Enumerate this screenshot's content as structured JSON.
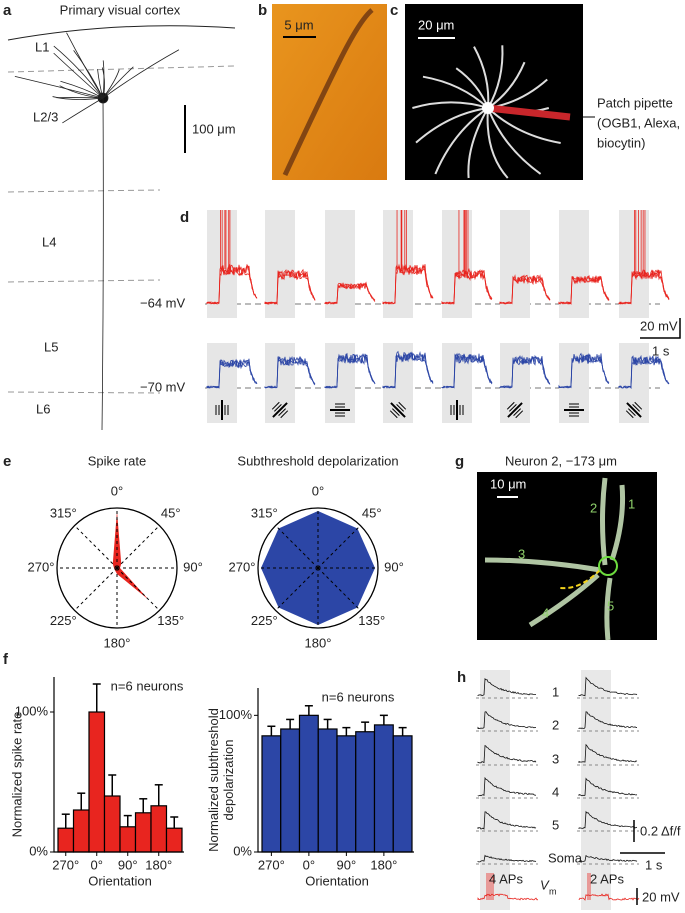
{
  "panels": {
    "a": {
      "label": "a",
      "title": "Primary visual cortex",
      "layers": [
        "L1",
        "L2/3",
        "L4",
        "L5",
        "L6"
      ],
      "scale": "100 μm"
    },
    "b": {
      "label": "b",
      "scale": "5 μm"
    },
    "c": {
      "label": "c",
      "scale": "20 μm",
      "pipette": [
        "Patch pipette",
        "(OGB1, Alexa,",
        "biocytin)"
      ]
    },
    "d": {
      "label": "d",
      "red_baseline": "−64 mV",
      "blue_baseline": "−70 mV",
      "scale_v": "20 mV",
      "scale_t": "1 s"
    },
    "e": {
      "label": "e"
    },
    "f": {
      "label": "f"
    },
    "g": {
      "label": "g",
      "title": "Neuron 2, −173 μm",
      "scale": "10 μm",
      "dendrites": [
        "1",
        "2",
        "3",
        "4",
        "5"
      ]
    },
    "h": {
      "label": "h",
      "rows": [
        "1",
        "2",
        "3",
        "4",
        "5",
        "Soma"
      ],
      "scale_f": "0.2 Δf/f",
      "scale_t": "1 s",
      "aps": [
        "4 APs",
        "2 APs"
      ],
      "vm": "V",
      "vm_sub": "m",
      "scale_v": "20 mV"
    }
  },
  "chart_data": [
    {
      "type": "polar",
      "title": "Spike rate",
      "categories": [
        "0°",
        "45°",
        "90°",
        "135°",
        "180°",
        "225°",
        "270°",
        "315°"
      ],
      "values": [
        0.95,
        0.1,
        0.05,
        0.75,
        0.1,
        0.05,
        0.05,
        0.1
      ],
      "rlim": [
        0,
        1
      ],
      "color": "#e8251f"
    },
    {
      "type": "polar",
      "title": "Subthreshold depolarization",
      "categories": [
        "0°",
        "45°",
        "90°",
        "135°",
        "180°",
        "225°",
        "270°",
        "315°"
      ],
      "values": [
        0.95,
        0.93,
        0.95,
        0.93,
        0.95,
        0.93,
        0.95,
        0.93
      ],
      "rlim": [
        0,
        1
      ],
      "color": "#2c46a6"
    },
    {
      "type": "bar",
      "annotation": "n=6 neurons",
      "xlabel": "Orientation",
      "ylabel": [
        "Normalized spike rate"
      ],
      "categories": [
        "270°",
        null,
        "0°",
        null,
        "90°",
        null,
        "180°",
        null
      ],
      "values": [
        17,
        30,
        100,
        40,
        18,
        28,
        33,
        17
      ],
      "errors": [
        10,
        12,
        20,
        15,
        8,
        10,
        15,
        8
      ],
      "ylim": [
        0,
        125
      ],
      "yticks": [
        {
          "value": 0,
          "label": "0%"
        },
        {
          "value": 100,
          "label": "100%"
        }
      ],
      "color": "#e8251f"
    },
    {
      "type": "bar",
      "annotation": "n=6 neurons",
      "xlabel": "Orientation",
      "ylabel": [
        "Normalized subthreshold",
        "depolarization"
      ],
      "categories": [
        "270°",
        null,
        "0°",
        null,
        "90°",
        null,
        "180°",
        null
      ],
      "values": [
        85,
        90,
        100,
        90,
        85,
        88,
        93,
        85
      ],
      "errors": [
        7,
        7,
        7,
        7,
        6,
        7,
        7,
        6
      ],
      "ylim": [
        0,
        120
      ],
      "yticks": [
        {
          "value": 0,
          "label": "0%"
        },
        {
          "value": 100,
          "label": "100%"
        }
      ],
      "color": "#2c46a6"
    }
  ]
}
